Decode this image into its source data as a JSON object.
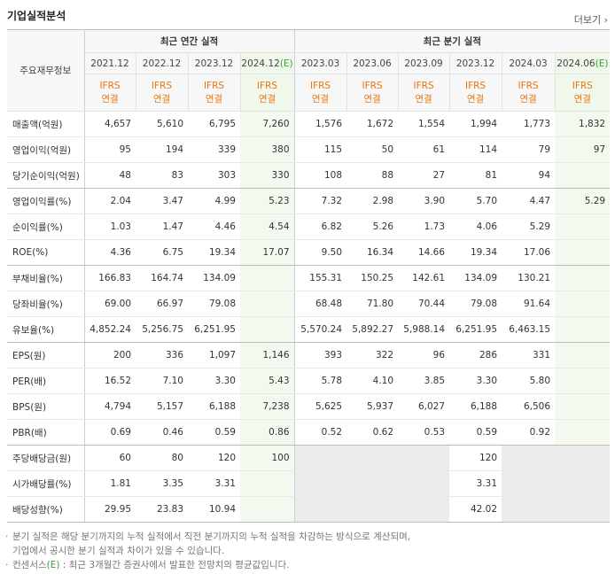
{
  "header": {
    "title": "기업실적분석",
    "more": "더보기"
  },
  "table": {
    "corner": "주요재무정보",
    "groups": [
      {
        "label": "최근 연간 실적",
        "periods": [
          {
            "date": "2021.12",
            "standard": "IFRS",
            "basis": "연결"
          },
          {
            "date": "2022.12",
            "standard": "IFRS",
            "basis": "연결"
          },
          {
            "date": "2023.12",
            "standard": "IFRS",
            "basis": "연결"
          },
          {
            "date": "2024.12",
            "estimate": "(E)",
            "standard": "IFRS",
            "basis": "연결"
          }
        ]
      },
      {
        "label": "최근 분기 실적",
        "periods": [
          {
            "date": "2023.03",
            "standard": "IFRS",
            "basis": "연결"
          },
          {
            "date": "2023.06",
            "standard": "IFRS",
            "basis": "연결"
          },
          {
            "date": "2023.09",
            "standard": "IFRS",
            "basis": "연결"
          },
          {
            "date": "2023.12",
            "standard": "IFRS",
            "basis": "연결"
          },
          {
            "date": "2024.03",
            "standard": "IFRS",
            "basis": "연결"
          },
          {
            "date": "2024.06",
            "estimate": "(E)",
            "standard": "IFRS",
            "basis": "연결"
          }
        ]
      }
    ],
    "sections": [
      [
        {
          "label": "매출액(억원)",
          "values": [
            "4,657",
            "5,610",
            "6,795",
            "7,260",
            "1,576",
            "1,672",
            "1,554",
            "1,994",
            "1,773",
            "1,832"
          ]
        },
        {
          "label": "영업이익(억원)",
          "values": [
            "95",
            "194",
            "339",
            "380",
            "115",
            "50",
            "61",
            "114",
            "79",
            "97"
          ]
        },
        {
          "label": "당기순이익(억원)",
          "values": [
            "48",
            "83",
            "303",
            "330",
            "108",
            "88",
            "27",
            "81",
            "94",
            null
          ]
        }
      ],
      [
        {
          "label": "영업이익률(%)",
          "values": [
            "2.04",
            "3.47",
            "4.99",
            "5.23",
            "7.32",
            "2.98",
            "3.90",
            "5.70",
            "4.47",
            "5.29"
          ]
        },
        {
          "label": "순이익률(%)",
          "values": [
            "1.03",
            "1.47",
            "4.46",
            "4.54",
            "6.82",
            "5.26",
            "1.73",
            "4.06",
            "5.29",
            null
          ]
        },
        {
          "label": "ROE(%)",
          "values": [
            "4.36",
            "6.75",
            "19.34",
            "17.07",
            "9.50",
            "16.34",
            "14.66",
            "19.34",
            "17.06",
            null
          ]
        }
      ],
      [
        {
          "label": "부채비율(%)",
          "values": [
            "166.83",
            "164.74",
            "134.09",
            null,
            "155.31",
            "150.25",
            "142.61",
            "134.09",
            "130.21",
            null
          ]
        },
        {
          "label": "당좌비율(%)",
          "values": [
            "69.00",
            "66.97",
            "79.08",
            null,
            "68.48",
            "71.80",
            "70.44",
            "79.08",
            "91.64",
            null
          ]
        },
        {
          "label": "유보율(%)",
          "values": [
            "4,852.24",
            "5,256.75",
            "6,251.95",
            null,
            "5,570.24",
            "5,892.27",
            "5,988.14",
            "6,251.95",
            "6,463.15",
            null
          ]
        }
      ],
      [
        {
          "label": "EPS(원)",
          "values": [
            "200",
            "336",
            "1,097",
            "1,146",
            "393",
            "322",
            "96",
            "286",
            "331",
            null
          ]
        },
        {
          "label": "PER(배)",
          "values": [
            "16.52",
            "7.10",
            "3.30",
            "5.43",
            "5.78",
            "4.10",
            "3.85",
            "3.30",
            "5.80",
            null
          ]
        },
        {
          "label": "BPS(원)",
          "values": [
            "4,794",
            "5,157",
            "6,188",
            "7,238",
            "5,625",
            "5,937",
            "6,027",
            "6,188",
            "6,506",
            null
          ]
        },
        {
          "label": "PBR(배)",
          "values": [
            "0.69",
            "0.46",
            "0.59",
            "0.86",
            "0.52",
            "0.62",
            "0.53",
            "0.59",
            "0.92",
            null
          ]
        }
      ],
      [
        {
          "label": "주당배당금(원)",
          "values": [
            "60",
            "80",
            "120",
            "100",
            null,
            null,
            null,
            "120",
            null,
            null
          ]
        },
        {
          "label": "시가배당률(%)",
          "values": [
            "1.81",
            "3.35",
            "3.31",
            null,
            null,
            null,
            null,
            "3.31",
            null,
            null
          ]
        },
        {
          "label": "배당성향(%)",
          "values": [
            "29.95",
            "23.83",
            "10.94",
            null,
            null,
            null,
            null,
            "42.02",
            null,
            null
          ]
        }
      ]
    ]
  },
  "notes": [
    {
      "lines": [
        "분기 실적은 해당 분기까지의 누적 실적에서 직전 분기까지의 누적 실적을 차감하는 방식으로 계산되며,",
        "기업에서 공시한 분기 실적과 차이가 있을 수 있습니다."
      ]
    },
    {
      "term": "컨센서스",
      "estimate": "(E)",
      "text": " : 최근 3개월간 증권사에서 발표한 전망치의 평균값입니다."
    }
  ]
}
